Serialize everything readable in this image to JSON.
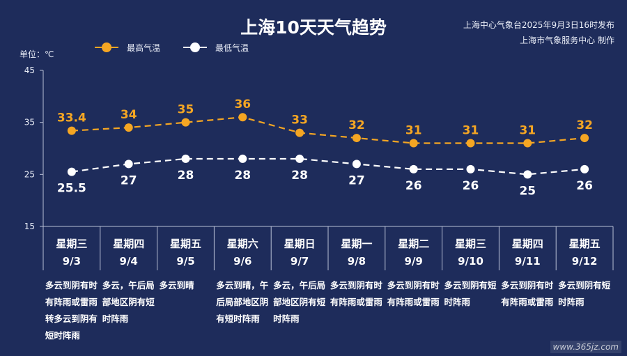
{
  "header": {
    "title": "上海10天天气趋势",
    "publisher_line1": "上海中心气象台2025年9月3日16时发布",
    "publisher_line2": "上海市气象服务中心 制作",
    "unit_label": "单位：℃"
  },
  "legend": {
    "high_label": "最高气温",
    "low_label": "最低气温"
  },
  "colors": {
    "background": "#1e2c5b",
    "high": "#f5a623",
    "low": "#ffffff",
    "grid": "#b8c0d6"
  },
  "chart_data": {
    "type": "line",
    "xlabel": "",
    "ylabel": "单位：℃",
    "ylim": [
      15,
      45
    ],
    "yticks": [
      "15",
      "25",
      "35",
      "45"
    ],
    "grid": false,
    "legend_position": "top-left",
    "categories": [
      "9/3",
      "9/4",
      "9/5",
      "9/6",
      "9/7",
      "9/8",
      "9/9",
      "9/10",
      "9/11",
      "9/12"
    ],
    "series": [
      {
        "name": "最高气温",
        "values": [
          33.4,
          34,
          35,
          36,
          33,
          32,
          31,
          31,
          31,
          32
        ],
        "labels": [
          "33.4",
          "34",
          "35",
          "36",
          "33",
          "32",
          "31",
          "31",
          "31",
          "32"
        ]
      },
      {
        "name": "最低气温",
        "values": [
          25.5,
          27,
          28,
          28,
          28,
          27,
          26,
          26,
          25,
          26
        ],
        "labels": [
          "25.5",
          "27",
          "28",
          "28",
          "28",
          "27",
          "26",
          "26",
          "25",
          "26"
        ]
      }
    ]
  },
  "days": [
    {
      "weekday": "星期三",
      "date": "9/3",
      "desc": "多云到阴有时有阵雨或雷雨转多云到阴有短时阵雨"
    },
    {
      "weekday": "星期四",
      "date": "9/4",
      "desc": "多云，午后局部地区阴有短时阵雨"
    },
    {
      "weekday": "星期五",
      "date": "9/5",
      "desc": "多云到晴"
    },
    {
      "weekday": "星期六",
      "date": "9/6",
      "desc": "多云到晴，午后局部地区阴有短时阵雨"
    },
    {
      "weekday": "星期日",
      "date": "9/7",
      "desc": "多云，午后局部地区阴有短时阵雨"
    },
    {
      "weekday": "星期一",
      "date": "9/8",
      "desc": "多云到阴有时有阵雨或雷雨"
    },
    {
      "weekday": "星期二",
      "date": "9/9",
      "desc": "多云到阴有时有阵雨或雷雨"
    },
    {
      "weekday": "星期三",
      "date": "9/10",
      "desc": "多云到阴有短时阵雨"
    },
    {
      "weekday": "星期四",
      "date": "9/11",
      "desc": "多云到阴有时有阵雨或雷雨"
    },
    {
      "weekday": "星期五",
      "date": "9/12",
      "desc": "多云到阴有短时阵雨"
    }
  ],
  "watermark": "www.365jz.com"
}
